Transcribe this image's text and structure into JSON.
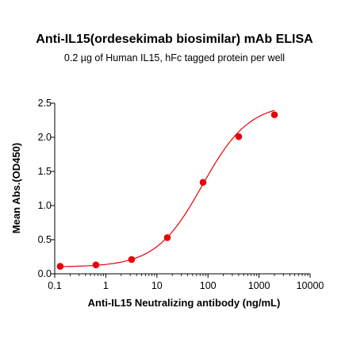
{
  "chart_data": {
    "type": "scatter",
    "title": "Anti-IL15(ordesekimab biosimilar) mAb ELISA",
    "subtitle": "0.2 µg of Human IL15, hFc tagged protein per well",
    "xlabel": "Anti-IL15 Neutralizing antibody (ng/mL)",
    "ylabel": "Mean Abs.(OD450)",
    "x_scale": "log",
    "xlim": [
      0.1,
      10000
    ],
    "ylim": [
      0,
      2.5
    ],
    "x_ticks": [
      0.1,
      1,
      10,
      100,
      1000,
      10000
    ],
    "x_tick_labels": [
      "0.1",
      "1",
      "10",
      "100",
      "1000",
      "10000"
    ],
    "y_ticks": [
      0,
      0.5,
      1,
      1.5,
      2,
      2.5
    ],
    "y_tick_labels": [
      "0.0",
      "0.5",
      "1.0",
      "1.5",
      "2.0",
      "2.5"
    ],
    "grid": false,
    "color": "#e8000b",
    "series": [
      {
        "x": [
          0.128,
          0.64,
          3.2,
          16,
          80,
          400,
          2000
        ],
        "y": [
          0.11,
          0.13,
          0.21,
          0.53,
          1.34,
          2.01,
          2.33
        ]
      }
    ],
    "fit": {
      "model": "4PL",
      "bottom": 0.1,
      "top": 2.5,
      "ec50": 78,
      "hill": 0.95
    }
  }
}
